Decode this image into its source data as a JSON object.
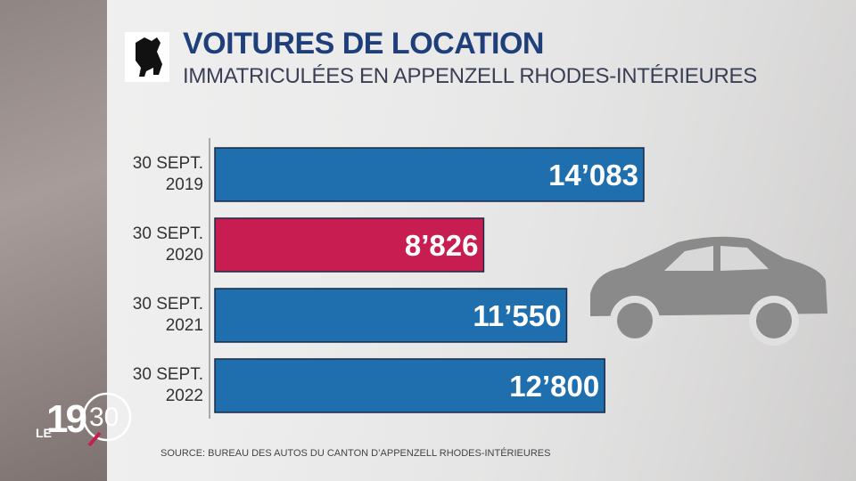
{
  "chart_data": {
    "type": "bar",
    "orientation": "horizontal",
    "title": "VOITURES DE LOCATION",
    "subtitle": "IMMATRICULÉES EN APPENZELL RHODES-INTÉRIEURES",
    "categories": [
      "30 SEPT. 2019",
      "30 SEPT. 2020",
      "30 SEPT. 2021",
      "30 SEPT. 2022"
    ],
    "values": [
      14083,
      8826,
      11550,
      12800
    ],
    "value_labels": [
      "14’083",
      "8’826",
      "11’550",
      "12’800"
    ],
    "colors": [
      "#1f6fae",
      "#c81d50",
      "#1f6fae",
      "#1f6fae"
    ],
    "source": "SOURCE: BUREAU DES AUTOS DU CANTON D’APPENZELL RHODES-INTÉRIEURES"
  },
  "logo": {
    "prefix": "LE",
    "hour": "19",
    "minute": "30"
  }
}
